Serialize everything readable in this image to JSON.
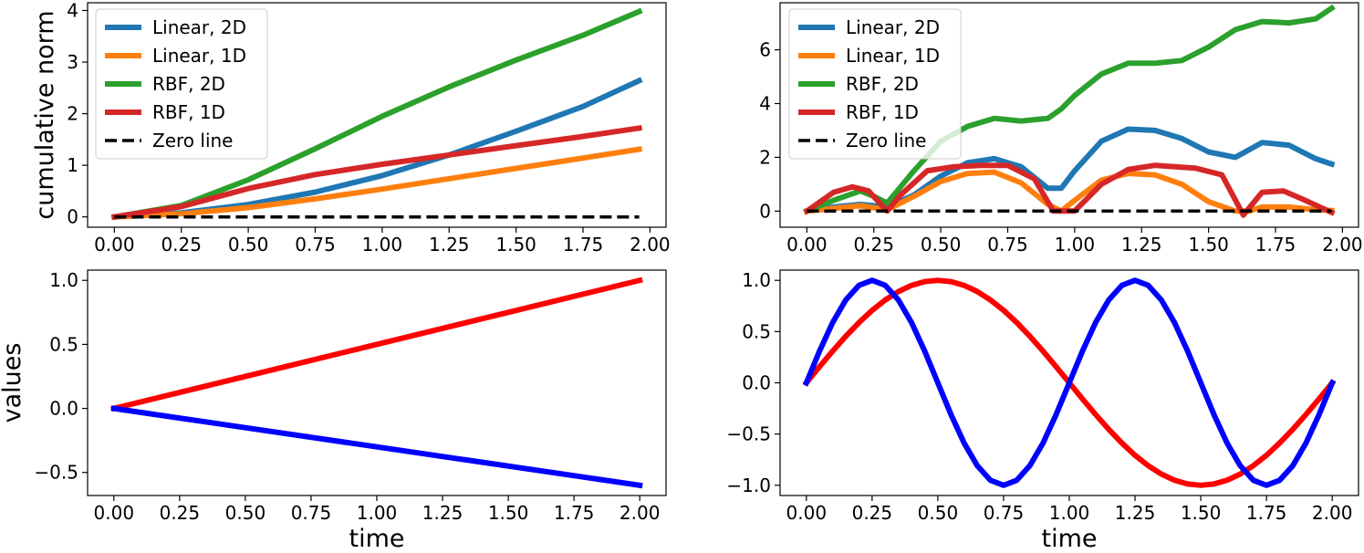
{
  "chart_data": [
    {
      "type": "line",
      "panel": "top-left",
      "title": "",
      "xlabel": "",
      "ylabel": "cumulative norm",
      "xlim": [
        -0.1,
        2.06
      ],
      "ylim": [
        -0.2,
        4.15
      ],
      "xticks": [
        "0.00",
        "0.25",
        "0.50",
        "0.75",
        "1.00",
        "1.25",
        "1.50",
        "1.75",
        "2.00"
      ],
      "yticks": [
        "0",
        "1",
        "2",
        "3",
        "4"
      ],
      "grid": false,
      "legend_position": "top-left",
      "series": [
        {
          "name": "Linear, 2D",
          "color": "#1f77b4",
          "dash": "solid",
          "x": [
            0,
            0.25,
            0.5,
            0.75,
            1.0,
            1.25,
            1.5,
            1.75,
            1.96
          ],
          "y": [
            0,
            0.08,
            0.24,
            0.48,
            0.8,
            1.2,
            1.66,
            2.14,
            2.64
          ]
        },
        {
          "name": "Linear, 1D",
          "color": "#ff7f0e",
          "dash": "solid",
          "x": [
            0,
            0.25,
            0.5,
            0.75,
            1.0,
            1.25,
            1.5,
            1.75,
            1.96
          ],
          "y": [
            0,
            0.06,
            0.18,
            0.35,
            0.54,
            0.74,
            0.94,
            1.14,
            1.31
          ]
        },
        {
          "name": "RBF, 2D",
          "color": "#2ca02c",
          "dash": "solid",
          "x": [
            0,
            0.25,
            0.5,
            0.75,
            1.0,
            1.25,
            1.5,
            1.75,
            1.96
          ],
          "y": [
            0,
            0.22,
            0.72,
            1.32,
            1.95,
            2.52,
            3.04,
            3.52,
            3.98
          ]
        },
        {
          "name": "RBF, 1D",
          "color": "#d62728",
          "dash": "solid",
          "x": [
            0,
            0.25,
            0.5,
            0.75,
            1.0,
            1.25,
            1.5,
            1.75,
            1.96
          ],
          "y": [
            0,
            0.2,
            0.55,
            0.82,
            1.02,
            1.2,
            1.38,
            1.56,
            1.72
          ]
        },
        {
          "name": "Zero line",
          "color": "#000000",
          "dash": "dashed",
          "x": [
            0,
            1.96
          ],
          "y": [
            0,
            0
          ]
        }
      ]
    },
    {
      "type": "line",
      "panel": "top-right",
      "title": "",
      "xlabel": "",
      "ylabel": "",
      "xlim": [
        -0.1,
        2.06
      ],
      "ylim": [
        -0.6,
        7.75
      ],
      "xticks": [
        "0.00",
        "0.25",
        "0.50",
        "0.75",
        "1.00",
        "1.25",
        "1.50",
        "1.75",
        "2.00"
      ],
      "yticks": [
        "0",
        "2",
        "4",
        "6"
      ],
      "grid": false,
      "legend_position": "top-left",
      "series": [
        {
          "name": "Linear, 2D",
          "color": "#1f77b4",
          "dash": "solid",
          "x": [
            0,
            0.1,
            0.2,
            0.3,
            0.4,
            0.5,
            0.6,
            0.7,
            0.8,
            0.9,
            0.95,
            1.0,
            1.1,
            1.2,
            1.3,
            1.4,
            1.5,
            1.6,
            1.7,
            1.8,
            1.9,
            1.96
          ],
          "y": [
            0,
            0.15,
            0.25,
            0.15,
            0.6,
            1.3,
            1.8,
            1.95,
            1.65,
            0.85,
            0.85,
            1.5,
            2.6,
            3.05,
            3.0,
            2.7,
            2.2,
            2.0,
            2.55,
            2.45,
            1.95,
            1.75
          ]
        },
        {
          "name": "Linear, 1D",
          "color": "#ff7f0e",
          "dash": "solid",
          "x": [
            0,
            0.1,
            0.2,
            0.3,
            0.4,
            0.5,
            0.6,
            0.7,
            0.8,
            0.9,
            0.95,
            1.0,
            1.1,
            1.2,
            1.3,
            1.4,
            1.5,
            1.6,
            1.65,
            1.7,
            1.8,
            1.9,
            1.96
          ],
          "y": [
            0,
            0.1,
            0.2,
            0.05,
            0.55,
            1.1,
            1.4,
            1.45,
            1.05,
            0.25,
            0.0,
            0.4,
            1.15,
            1.4,
            1.35,
            1.0,
            0.35,
            0.0,
            0.0,
            0.15,
            0.15,
            0.05,
            0.02
          ]
        },
        {
          "name": "RBF, 2D",
          "color": "#2ca02c",
          "dash": "solid",
          "x": [
            0,
            0.1,
            0.2,
            0.25,
            0.3,
            0.4,
            0.5,
            0.6,
            0.7,
            0.8,
            0.9,
            0.95,
            1.0,
            1.1,
            1.2,
            1.3,
            1.4,
            1.5,
            1.6,
            1.7,
            1.8,
            1.9,
            1.96
          ],
          "y": [
            0,
            0.4,
            0.75,
            0.55,
            0.3,
            1.5,
            2.6,
            3.15,
            3.45,
            3.35,
            3.45,
            3.8,
            4.3,
            5.1,
            5.5,
            5.5,
            5.6,
            6.1,
            6.75,
            7.05,
            7.0,
            7.15,
            7.55
          ]
        },
        {
          "name": "RBF, 1D",
          "color": "#d62728",
          "dash": "solid",
          "x": [
            0,
            0.1,
            0.17,
            0.23,
            0.3,
            0.35,
            0.45,
            0.55,
            0.65,
            0.75,
            0.85,
            0.92,
            1.0,
            1.1,
            1.2,
            1.3,
            1.45,
            1.55,
            1.63,
            1.7,
            1.78,
            1.85,
            1.96
          ],
          "y": [
            0,
            0.7,
            0.9,
            0.75,
            0.0,
            0.6,
            1.5,
            1.65,
            1.7,
            1.7,
            1.2,
            0.0,
            0.0,
            1.0,
            1.55,
            1.7,
            1.6,
            1.35,
            -0.15,
            0.7,
            0.75,
            0.45,
            -0.05
          ]
        },
        {
          "name": "Zero line",
          "color": "#000000",
          "dash": "dashed",
          "x": [
            0,
            1.96
          ],
          "y": [
            0,
            0
          ]
        }
      ]
    },
    {
      "type": "line",
      "panel": "bottom-left",
      "title": "",
      "xlabel": "time",
      "ylabel": "values",
      "xlim": [
        -0.1,
        2.1
      ],
      "ylim": [
        -0.68,
        1.08
      ],
      "xticks": [
        "0.00",
        "0.25",
        "0.50",
        "0.75",
        "1.00",
        "1.25",
        "1.50",
        "1.75",
        "2.00"
      ],
      "yticks": [
        "-0.5",
        "0.0",
        "0.5",
        "1.0"
      ],
      "grid": false,
      "series": [
        {
          "color": "#ff0000",
          "dash": "solid",
          "function": "t/2",
          "x": [
            0,
            2.0
          ],
          "y": [
            0,
            1.0
          ]
        },
        {
          "color": "#0000ff",
          "dash": "solid",
          "function": "-0.3*t",
          "x": [
            0,
            2.0
          ],
          "y": [
            0,
            -0.6
          ]
        }
      ]
    },
    {
      "type": "line",
      "panel": "bottom-right",
      "title": "",
      "xlabel": "time",
      "ylabel": "",
      "xlim": [
        -0.1,
        2.1
      ],
      "ylim": [
        -1.1,
        1.1
      ],
      "xticks": [
        "0.00",
        "0.25",
        "0.50",
        "0.75",
        "1.00",
        "1.25",
        "1.50",
        "1.75",
        "2.00"
      ],
      "yticks": [
        "-1.0",
        "-0.5",
        "0.0",
        "0.5",
        "1.0"
      ],
      "grid": false,
      "series": [
        {
          "color": "#ff0000",
          "dash": "solid",
          "function": "sin(pi*t)",
          "samples": 41,
          "t_range": [
            0,
            2
          ]
        },
        {
          "color": "#0000ff",
          "dash": "solid",
          "function": "sin(2*pi*t)",
          "samples": 41,
          "t_range": [
            0,
            2
          ]
        }
      ]
    }
  ]
}
